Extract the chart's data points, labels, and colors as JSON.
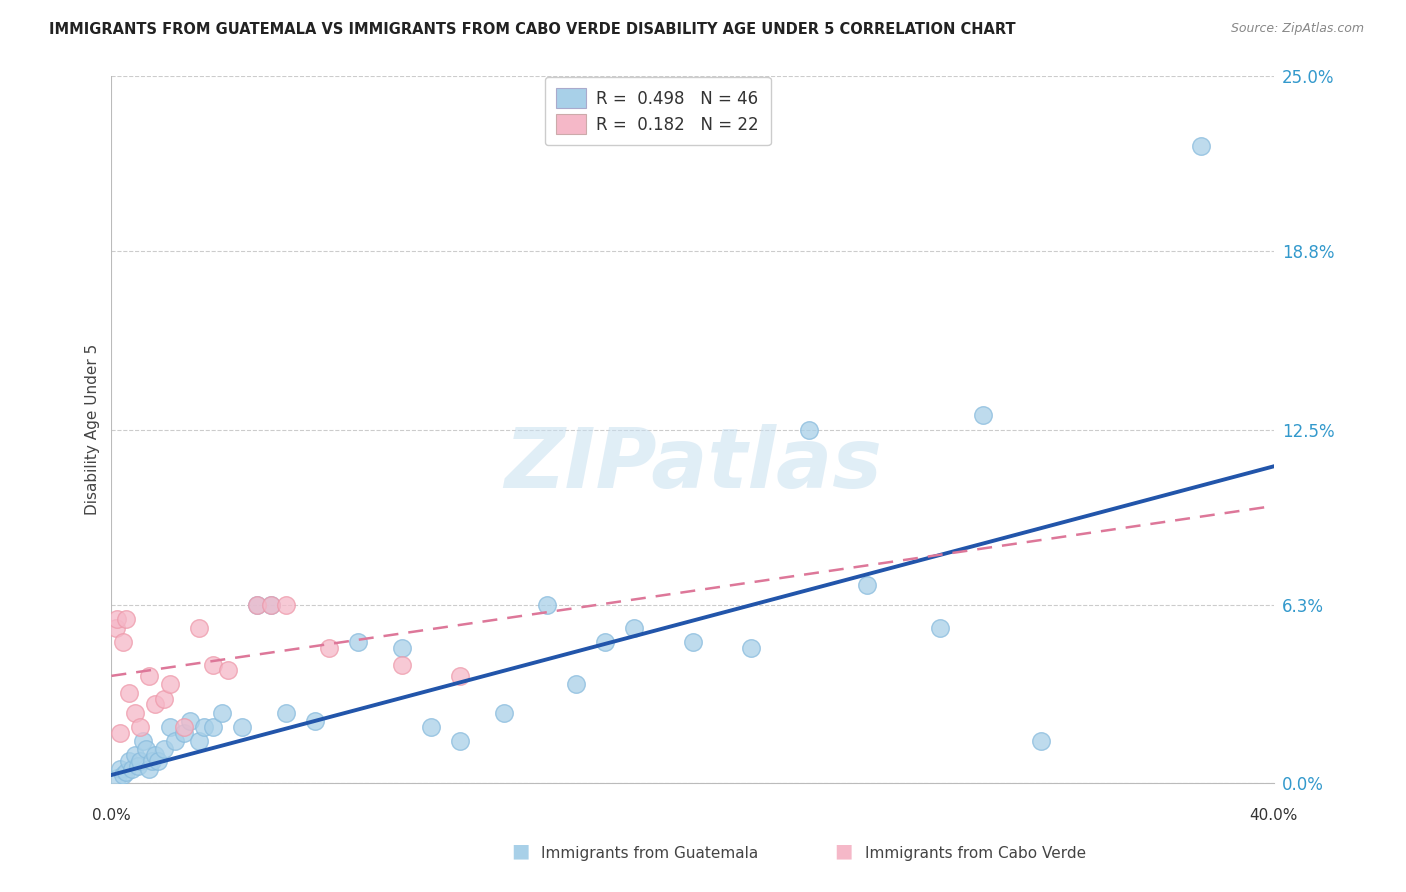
{
  "title": "IMMIGRANTS FROM GUATEMALA VS IMMIGRANTS FROM CABO VERDE DISABILITY AGE UNDER 5 CORRELATION CHART",
  "source": "Source: ZipAtlas.com",
  "ylabel": "Disability Age Under 5",
  "ytick_labels": [
    "0.0%",
    "6.3%",
    "12.5%",
    "18.8%",
    "25.0%"
  ],
  "ytick_values": [
    0.0,
    6.3,
    12.5,
    18.8,
    25.0
  ],
  "xlim": [
    0.0,
    40.0
  ],
  "ylim": [
    0.0,
    25.0
  ],
  "legend_r1": "R = 0.498",
  "legend_n1": "N = 46",
  "legend_r2": "R = 0.182",
  "legend_n2": "N = 22",
  "watermark_text": "ZIPatlas",
  "blue_color": "#a8d0e8",
  "pink_color": "#f5b8c8",
  "line_blue": "#2255aa",
  "line_pink": "#dd7799",
  "blue_line_x0": 0.0,
  "blue_line_y0": 0.3,
  "blue_line_x1": 40.0,
  "blue_line_y1": 11.2,
  "pink_line_x0": 0.0,
  "pink_line_y0": 3.8,
  "pink_line_x1": 40.0,
  "pink_line_y1": 9.8,
  "guatemala_x": [
    0.2,
    0.3,
    0.4,
    0.5,
    0.6,
    0.7,
    0.8,
    0.9,
    1.0,
    1.1,
    1.2,
    1.3,
    1.4,
    1.5,
    1.6,
    1.8,
    2.0,
    2.2,
    2.5,
    2.7,
    3.0,
    3.2,
    3.5,
    3.8,
    4.5,
    5.0,
    5.5,
    6.0,
    7.0,
    8.5,
    10.0,
    11.0,
    12.0,
    13.5,
    15.0,
    16.0,
    17.0,
    18.0,
    20.0,
    22.0,
    24.0,
    26.0,
    28.5,
    30.0,
    32.0,
    37.5
  ],
  "guatemala_y": [
    0.2,
    0.5,
    0.3,
    0.4,
    0.8,
    0.5,
    1.0,
    0.6,
    0.8,
    1.5,
    1.2,
    0.5,
    0.8,
    1.0,
    0.8,
    1.2,
    2.0,
    1.5,
    1.8,
    2.2,
    1.5,
    2.0,
    2.0,
    2.5,
    2.0,
    6.3,
    6.3,
    2.5,
    2.2,
    5.0,
    4.8,
    2.0,
    1.5,
    2.5,
    6.3,
    3.5,
    5.0,
    5.5,
    5.0,
    4.8,
    12.5,
    7.0,
    5.5,
    13.0,
    1.5,
    22.5
  ],
  "caboverde_x": [
    0.15,
    0.2,
    0.3,
    0.4,
    0.5,
    0.6,
    0.8,
    1.0,
    1.3,
    1.5,
    1.8,
    2.0,
    2.5,
    3.0,
    3.5,
    4.0,
    5.0,
    5.5,
    6.0,
    7.5,
    10.0,
    12.0
  ],
  "caboverde_y": [
    5.5,
    5.8,
    1.8,
    5.0,
    5.8,
    3.2,
    2.5,
    2.0,
    3.8,
    2.8,
    3.0,
    3.5,
    2.0,
    5.5,
    4.2,
    4.0,
    6.3,
    6.3,
    6.3,
    4.8,
    4.2,
    3.8
  ]
}
